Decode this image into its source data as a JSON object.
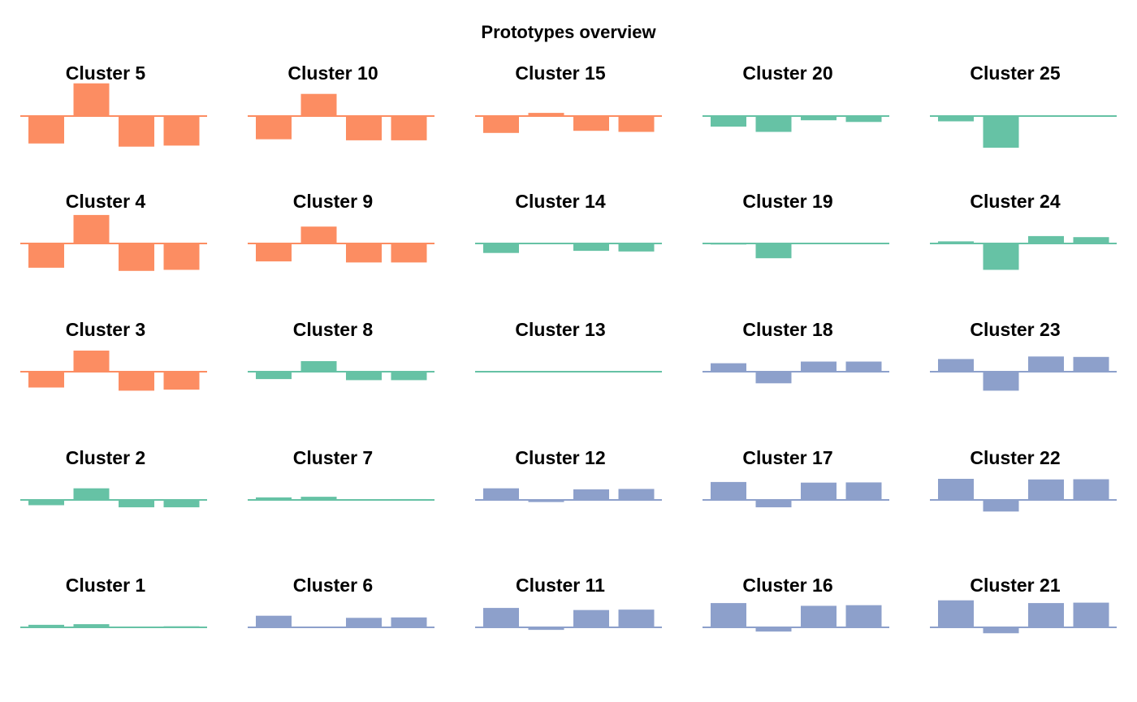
{
  "chart_data": {
    "type": "bar",
    "title": "Prototypes overview",
    "xlabel": "",
    "ylabel": "",
    "ylim": [
      -1.6,
      1.6
    ],
    "grid": false,
    "colors": {
      "orange": "#FC8D62",
      "green": "#66C2A5",
      "blue": "#8DA0CB"
    },
    "panels": [
      {
        "title": "Cluster 5",
        "color": "orange",
        "values": [
          -1.3,
          1.55,
          -1.45,
          -1.4
        ]
      },
      {
        "title": "Cluster 10",
        "color": "orange",
        "values": [
          -1.1,
          1.05,
          -1.15,
          -1.15
        ]
      },
      {
        "title": "Cluster 15",
        "color": "orange",
        "values": [
          -0.8,
          0.15,
          -0.7,
          -0.75
        ]
      },
      {
        "title": "Cluster 20",
        "color": "green",
        "values": [
          -0.5,
          -0.75,
          -0.2,
          -0.28
        ]
      },
      {
        "title": "Cluster 25",
        "color": "green",
        "values": [
          -0.25,
          -1.5,
          0.02,
          0.0
        ]
      },
      {
        "title": "Cluster 4",
        "color": "orange",
        "values": [
          -1.15,
          1.35,
          -1.3,
          -1.25
        ]
      },
      {
        "title": "Cluster 9",
        "color": "orange",
        "values": [
          -0.85,
          0.8,
          -0.9,
          -0.9
        ]
      },
      {
        "title": "Cluster 14",
        "color": "green",
        "values": [
          -0.45,
          0.0,
          -0.35,
          -0.38
        ]
      },
      {
        "title": "Cluster 19",
        "color": "green",
        "values": [
          -0.05,
          -0.7,
          0.03,
          0.0
        ]
      },
      {
        "title": "Cluster 24",
        "color": "green",
        "values": [
          0.1,
          -1.25,
          0.35,
          0.3
        ]
      },
      {
        "title": "Cluster 3",
        "color": "orange",
        "values": [
          -0.75,
          1.0,
          -0.9,
          -0.85
        ]
      },
      {
        "title": "Cluster 8",
        "color": "green",
        "values": [
          -0.35,
          0.5,
          -0.4,
          -0.4
        ]
      },
      {
        "title": "Cluster 13",
        "color": "green",
        "values": [
          0.0,
          0.0,
          0.02,
          0.03
        ]
      },
      {
        "title": "Cluster 18",
        "color": "blue",
        "values": [
          0.4,
          -0.55,
          0.48,
          0.48
        ]
      },
      {
        "title": "Cluster 23",
        "color": "blue",
        "values": [
          0.6,
          -0.9,
          0.72,
          0.7
        ]
      },
      {
        "title": "Cluster 2",
        "color": "green",
        "values": [
          -0.25,
          0.55,
          -0.35,
          -0.35
        ]
      },
      {
        "title": "Cluster 7",
        "color": "green",
        "values": [
          0.12,
          0.15,
          0.02,
          0.04
        ]
      },
      {
        "title": "Cluster 12",
        "color": "blue",
        "values": [
          0.55,
          -0.1,
          0.5,
          0.52
        ]
      },
      {
        "title": "Cluster 17",
        "color": "blue",
        "values": [
          0.85,
          -0.35,
          0.82,
          0.83
        ]
      },
      {
        "title": "Cluster 22",
        "color": "blue",
        "values": [
          1.0,
          -0.55,
          0.97,
          0.98
        ]
      },
      {
        "title": "Cluster 1",
        "color": "green",
        "values": [
          0.12,
          0.15,
          0.03,
          0.05
        ]
      },
      {
        "title": "Cluster 6",
        "color": "blue",
        "values": [
          0.55,
          0.0,
          0.45,
          0.47
        ]
      },
      {
        "title": "Cluster 11",
        "color": "blue",
        "values": [
          0.92,
          -0.12,
          0.82,
          0.84
        ]
      },
      {
        "title": "Cluster 16",
        "color": "blue",
        "values": [
          1.15,
          -0.2,
          1.02,
          1.05
        ]
      },
      {
        "title": "Cluster 21",
        "color": "blue",
        "values": [
          1.28,
          -0.28,
          1.15,
          1.17
        ]
      }
    ]
  }
}
